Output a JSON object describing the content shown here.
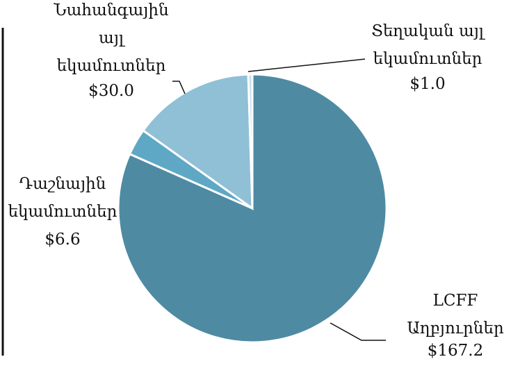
{
  "chart_data": {
    "type": "pie",
    "categories": [
      "LCFF\nԱղբյուրներ",
      "Դաշնային\nեկամուտներ",
      "Նահանգային\nայլ\nեկամուտներ",
      "Տեղական այլ\nեկամուտներ"
    ],
    "values": [
      167.2,
      6.6,
      30.0,
      1.0
    ],
    "value_labels": [
      "$167.2",
      "$6.6",
      "$30.0",
      "$1.0"
    ],
    "colors": [
      "#4f8aa3",
      "#5fa8c5",
      "#8fc0d6",
      "#c6e0ec"
    ]
  }
}
